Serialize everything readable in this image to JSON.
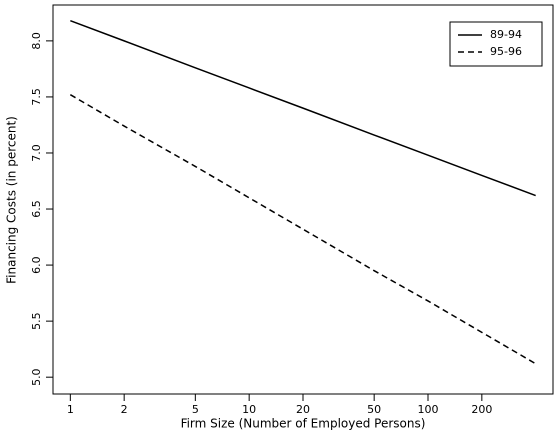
{
  "chart_data": {
    "type": "line",
    "xlabel": "Firm Size (Number of Employed Persons)",
    "ylabel": "Financing Costs (in percent)",
    "xlog": true,
    "x": [
      1,
      2,
      5,
      10,
      20,
      50,
      100,
      200,
      400
    ],
    "series": [
      {
        "name": "89-94",
        "color": "#000000",
        "linestyle": "solid",
        "values": [
          8.18,
          8.0,
          7.76,
          7.58,
          7.4,
          7.16,
          6.98,
          6.8,
          6.62
        ]
      },
      {
        "name": "95-96",
        "color": "#000000",
        "linestyle": "dashed",
        "values": [
          7.52,
          7.24,
          6.88,
          6.6,
          6.32,
          5.95,
          5.68,
          5.4,
          5.12
        ]
      }
    ],
    "xlim": [
      0.8,
      500
    ],
    "ylim": [
      4.85,
      8.32
    ],
    "xticks": [
      1,
      2,
      5,
      10,
      20,
      50,
      100,
      200
    ],
    "yticks": [
      {
        "value": 5,
        "label": "5.0"
      },
      5.5,
      {
        "value": 6,
        "label": "6.0"
      },
      6.5,
      {
        "value": 7,
        "label": "7.0"
      },
      7.5,
      {
        "value": 8,
        "label": "8.0"
      }
    ],
    "legend": "top-right"
  }
}
